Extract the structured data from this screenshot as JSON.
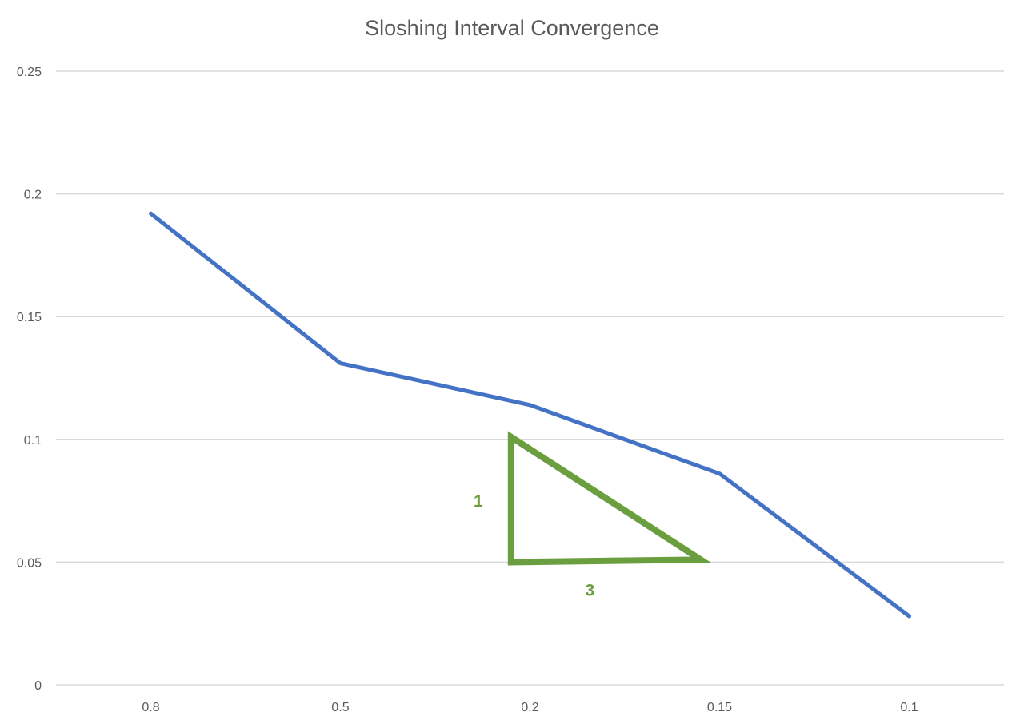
{
  "chart_data": {
    "type": "line",
    "title": "Sloshing Interval Convergence",
    "xlabel": "",
    "ylabel": "",
    "categories": [
      "0.8",
      "0.5",
      "0.2",
      "0.15",
      "0.1"
    ],
    "series": [
      {
        "values": [
          0.192,
          0.131,
          0.114,
          0.086,
          0.028
        ],
        "color": "#4472C4"
      }
    ],
    "ylim": [
      0,
      0.25
    ],
    "yticks": [
      "0",
      "0.05",
      "0.1",
      "0.15",
      "0.2",
      "0.25"
    ],
    "grid": true,
    "legend": "none",
    "annotations": {
      "color": "#6A9E3E",
      "slope_triangle": {
        "points": [
          {
            "x": 1.9,
            "y": 0.101
          },
          {
            "x": 1.9,
            "y": 0.05
          },
          {
            "x": 2.9,
            "y": 0.051
          }
        ]
      },
      "rise_label": "1",
      "run_label": "3"
    }
  }
}
